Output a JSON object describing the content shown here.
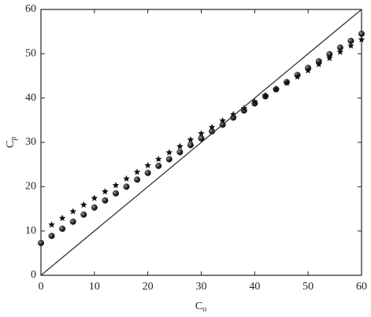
{
  "chart_data": {
    "type": "scatter",
    "xlabel": {
      "text": "C",
      "sub": "o"
    },
    "ylabel": {
      "text": "C",
      "sub": "p"
    },
    "xlim": [
      0,
      60
    ],
    "ylim": [
      0,
      60
    ],
    "xticks": [
      0,
      10,
      20,
      30,
      40,
      50,
      60
    ],
    "yticks": [
      0,
      10,
      20,
      30,
      40,
      50,
      60
    ],
    "series": [
      {
        "marker": "circle",
        "color": "#222222",
        "x": [
          0,
          2,
          4,
          6,
          8,
          10,
          12,
          14,
          16,
          18,
          20,
          22,
          24,
          26,
          28,
          30,
          32,
          34,
          36,
          38,
          40,
          42,
          44,
          46,
          48,
          50,
          52,
          54,
          56,
          58,
          60
        ],
        "values": [
          7.3,
          8.9,
          10.5,
          12.1,
          13.7,
          15.3,
          16.9,
          18.5,
          20.0,
          21.6,
          23.1,
          24.7,
          26.2,
          27.8,
          29.4,
          30.9,
          32.5,
          34.0,
          35.6,
          37.2,
          38.8,
          40.4,
          42.0,
          43.6,
          45.2,
          46.8,
          48.3,
          49.9,
          51.4,
          52.9,
          54.5
        ]
      },
      {
        "marker": "star",
        "color": "#111111",
        "x": [
          2,
          4,
          6,
          8,
          10,
          12,
          14,
          16,
          18,
          20,
          22,
          24,
          26,
          28,
          30,
          32,
          34,
          36,
          38,
          40,
          42,
          44,
          46,
          48,
          50,
          52,
          54,
          56,
          58,
          60
        ],
        "values": [
          11.4,
          12.9,
          14.4,
          15.9,
          17.4,
          18.9,
          20.3,
          21.8,
          23.3,
          24.8,
          26.2,
          27.7,
          29.1,
          30.6,
          32.0,
          33.4,
          34.9,
          36.3,
          37.7,
          39.2,
          40.6,
          42.0,
          43.4,
          44.8,
          46.2,
          47.6,
          49.0,
          50.4,
          51.8,
          53.2
        ]
      },
      {
        "marker": "line",
        "color": "#333333",
        "x": [
          0,
          60
        ],
        "values": [
          0,
          60
        ]
      }
    ]
  }
}
